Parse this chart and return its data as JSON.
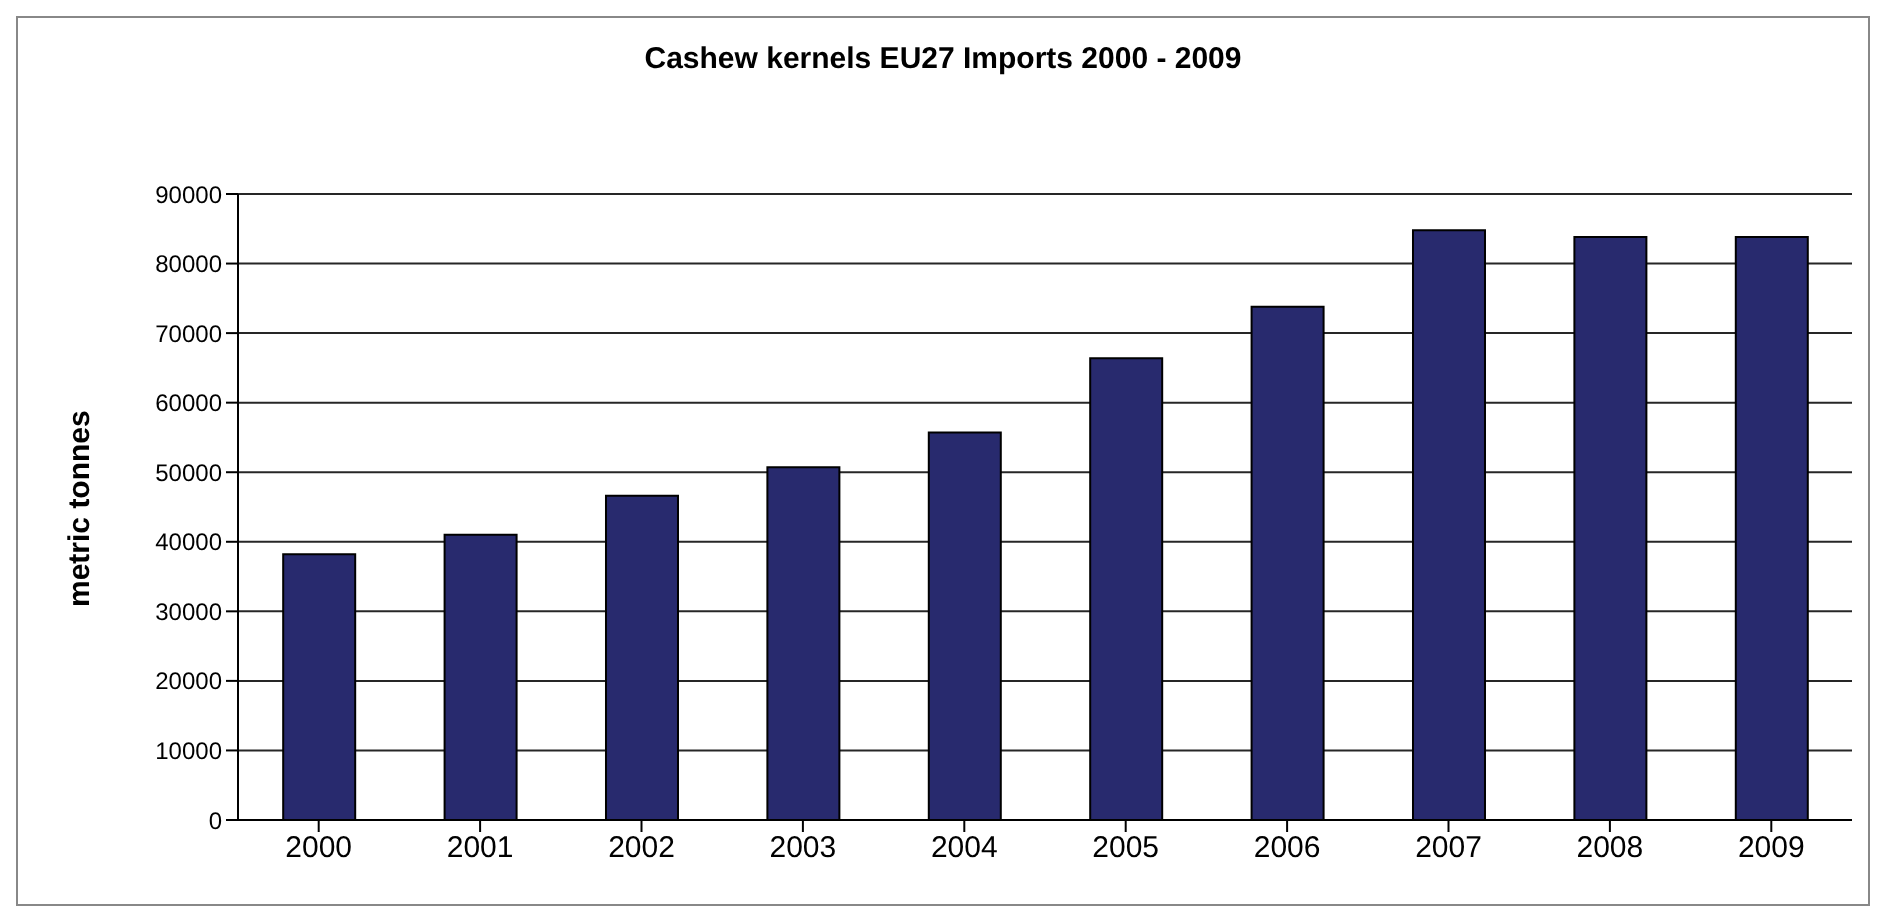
{
  "chart_data": {
    "type": "bar",
    "title": "Cashew kernels EU27 Imports 2000 - 2009",
    "ylabel": "metric tonnes",
    "categories": [
      "2000",
      "2001",
      "2002",
      "2003",
      "2004",
      "2005",
      "2006",
      "2007",
      "2008",
      "2009"
    ],
    "values": [
      38200,
      41000,
      46600,
      50700,
      55700,
      66400,
      73800,
      84800,
      83800,
      83800
    ],
    "color": "#282a6e",
    "ylim": [
      0,
      90000
    ],
    "yticks": [
      0,
      10000,
      20000,
      30000,
      40000,
      50000,
      60000,
      70000,
      80000,
      90000
    ],
    "grid": "y"
  }
}
